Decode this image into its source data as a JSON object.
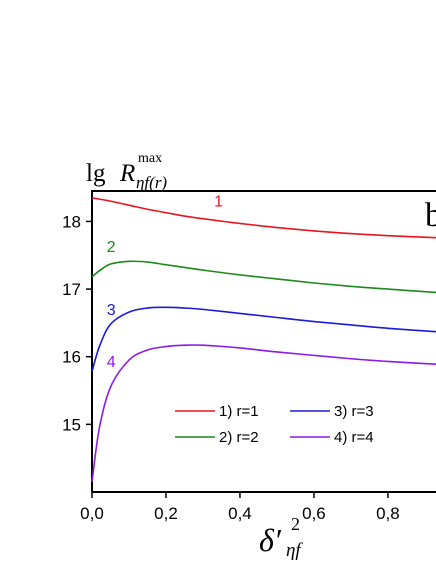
{
  "chart_data": {
    "type": "line",
    "panel_label": "b",
    "ylabel": {
      "prefix": "lg",
      "symbol": "R",
      "superscript": "max",
      "subscript": "ηf(r)"
    },
    "xlabel": {
      "symbol": "δ′",
      "superscript": "2",
      "subscript": "ηf"
    },
    "xlim": [
      0.0,
      0.93
    ],
    "ylim": [
      14.0,
      18.45
    ],
    "x_ticks": [
      0.0,
      0.2,
      0.4,
      0.6,
      0.8
    ],
    "x_tick_labels": [
      "0,0",
      "0,2",
      "0,4",
      "0,6",
      "0,8"
    ],
    "y_ticks": [
      15,
      16,
      17,
      18
    ],
    "y_tick_labels": [
      "15",
      "16",
      "17",
      "18"
    ],
    "x": [
      0.0,
      0.02,
      0.05,
      0.1,
      0.15,
      0.2,
      0.25,
      0.3,
      0.4,
      0.5,
      0.6,
      0.7,
      0.8,
      0.93
    ],
    "series": [
      {
        "name": "1) r=1",
        "curve_label": "1",
        "color": "#e8141e",
        "values": [
          18.35,
          18.33,
          18.3,
          18.24,
          18.18,
          18.13,
          18.08,
          18.04,
          17.97,
          17.91,
          17.86,
          17.82,
          17.79,
          17.76
        ]
      },
      {
        "name": "2) r=2",
        "curve_label": "2",
        "color": "#1a8a1a",
        "values": [
          17.18,
          17.27,
          17.37,
          17.41,
          17.4,
          17.36,
          17.32,
          17.28,
          17.21,
          17.15,
          17.09,
          17.04,
          17.0,
          16.95
        ]
      },
      {
        "name": "3) r=3",
        "curve_label": "3",
        "color": "#1a1adc",
        "values": [
          15.78,
          16.15,
          16.48,
          16.66,
          16.72,
          16.73,
          16.72,
          16.7,
          16.64,
          16.58,
          16.52,
          16.47,
          16.42,
          16.37
        ]
      },
      {
        "name": "4) r=4",
        "curve_label": "4",
        "color": "#8a1ae8",
        "values": [
          14.15,
          14.95,
          15.55,
          15.95,
          16.1,
          16.15,
          16.17,
          16.17,
          16.13,
          16.07,
          16.02,
          15.97,
          15.93,
          15.89
        ]
      }
    ],
    "legend_placement": "bottom-center",
    "grid": false
  }
}
